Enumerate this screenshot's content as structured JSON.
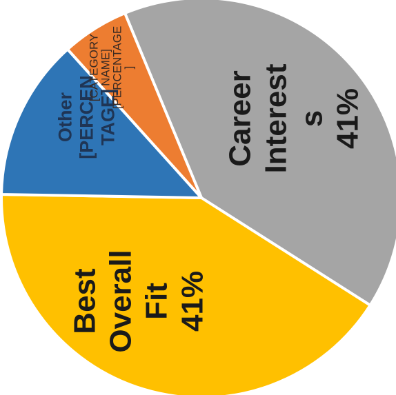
{
  "chart_data": {
    "type": "pie",
    "slices": [
      {
        "name": "Career Interest s",
        "value": 41,
        "value_label": "41%",
        "color": "#a5a5a5",
        "label_lines": [
          "Career",
          "Interest",
          "s",
          "41%"
        ]
      },
      {
        "name": "Best Overall Fit",
        "value": 41,
        "value_label": "41%",
        "color": "#ffc000",
        "label_lines": [
          "Best",
          "Overall",
          "Fit",
          "41%"
        ]
      },
      {
        "name": "Other",
        "value": 12,
        "value_label": "[PERCENTAGE]",
        "color": "#2e75b6",
        "label_lines": [
          "Other",
          "[PERCEN",
          "TAGE]"
        ]
      },
      {
        "name": "[CATEGORY NAME]",
        "value": 6,
        "value_label": "[PERCENTAGE]",
        "color": "#ed7d31",
        "label_lines": [
          "[CATEGORY",
          "NAME]",
          "[PERCENTAGE",
          "]"
        ]
      }
    ],
    "rotation": "rotated 90° clockwise (labels read bottom-to-top)",
    "slice_border_color": "#ffffff"
  }
}
